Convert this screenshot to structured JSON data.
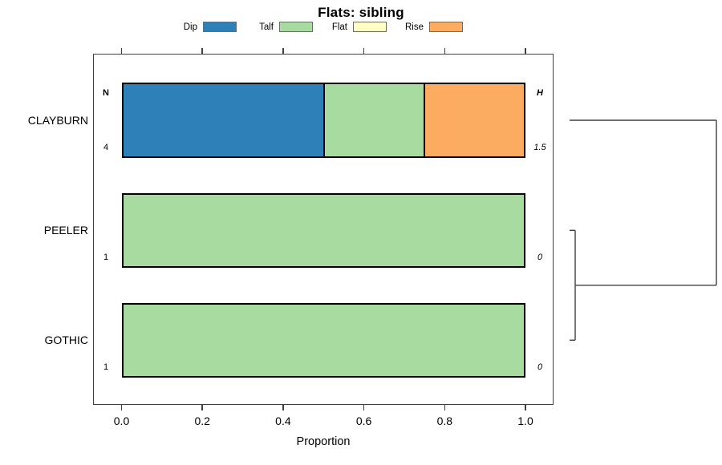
{
  "title": "Flats: sibling",
  "chart_data": {
    "type": "bar",
    "orientation": "horizontal",
    "stacked": true,
    "title": "Flats: sibling",
    "xlabel": "Proportion",
    "xlim": [
      0,
      1
    ],
    "x_ticks": [
      "0.0",
      "0.2",
      "0.4",
      "0.6",
      "0.8",
      "1.0"
    ],
    "grid": false,
    "legend_position": "top",
    "legend": [
      {
        "label": "Dip",
        "color": "#2e80b8"
      },
      {
        "label": "Talf",
        "color": "#a8dba0"
      },
      {
        "label": "Flat",
        "color": "#ffffc6"
      },
      {
        "label": "Rise",
        "color": "#fcac60"
      }
    ],
    "n_header": "N",
    "h_header": "H",
    "rows": [
      {
        "label": "CLAYBURN",
        "n": "4",
        "h": "1.5",
        "values": {
          "Dip": 0.5,
          "Talf": 0.25,
          "Flat": 0,
          "Rise": 0.25
        }
      },
      {
        "label": "PEELER",
        "n": "1",
        "h": "0",
        "values": {
          "Dip": 0,
          "Talf": 1.0,
          "Flat": 0,
          "Rise": 0
        }
      },
      {
        "label": "GOTHIC",
        "n": "1",
        "h": "0",
        "values": {
          "Dip": 0,
          "Talf": 1.0,
          "Flat": 0,
          "Rise": 0
        }
      }
    ],
    "dendrogram": {
      "leaf_order": [
        "CLAYBURN",
        "PEELER",
        "GOTHIC"
      ],
      "merges": [
        {
          "a": "PEELER",
          "b": "GOTHIC",
          "height": 0
        },
        {
          "a": "CLAYBURN",
          "b": "merge0",
          "height": 1.5
        }
      ],
      "max_height": 1.5
    },
    "frame_color": "#404040",
    "bar_border_color": "#000000"
  }
}
